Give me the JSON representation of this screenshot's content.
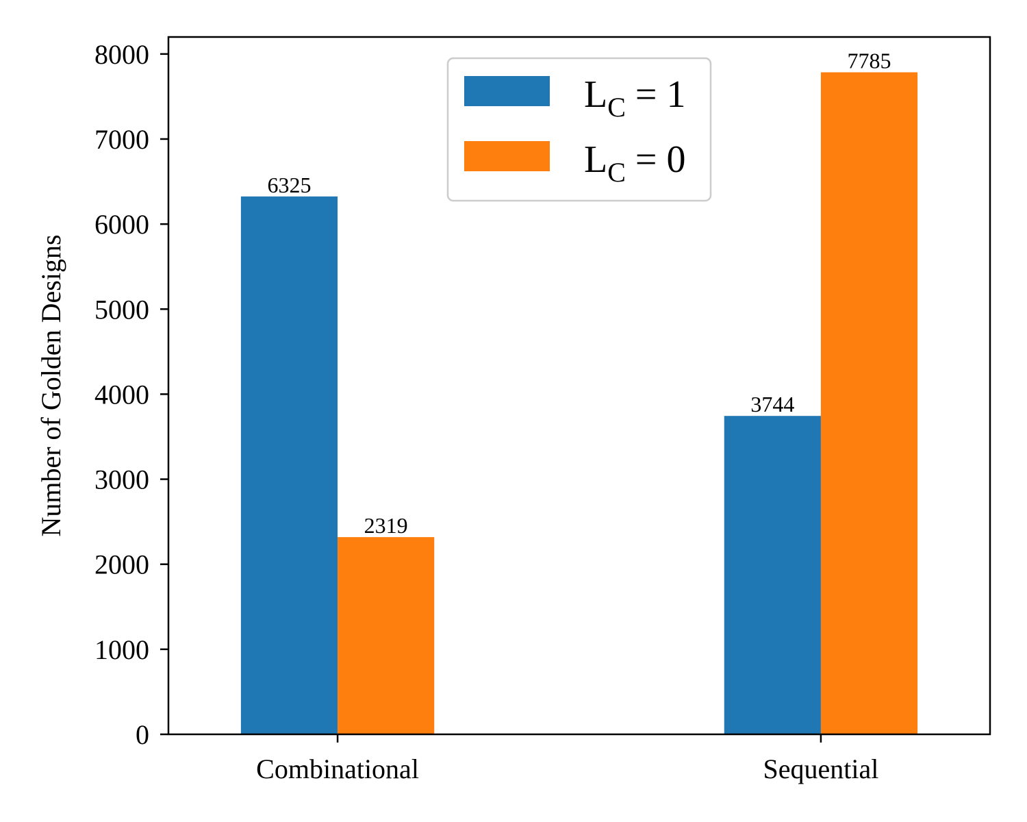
{
  "chart_data": {
    "type": "bar",
    "title": "",
    "xlabel": "",
    "ylabel": "Number of Golden Designs",
    "categories": [
      "Combinational",
      "Sequential"
    ],
    "series": [
      {
        "name": "L_C = 1",
        "label_main": "L",
        "label_sub": "C",
        "label_rest": " = 1",
        "color": "#1f77b4",
        "values": [
          6325,
          3744
        ]
      },
      {
        "name": "L_C = 0",
        "label_main": "L",
        "label_sub": "C",
        "label_rest": " = 0",
        "color": "#ff7f0e",
        "values": [
          2319,
          7785
        ]
      }
    ],
    "ylim": [
      0,
      8200
    ],
    "yticks": [
      0,
      1000,
      2000,
      3000,
      4000,
      5000,
      6000,
      7000,
      8000
    ],
    "grid": false,
    "legend_position": "top-center",
    "data_labels": true
  }
}
